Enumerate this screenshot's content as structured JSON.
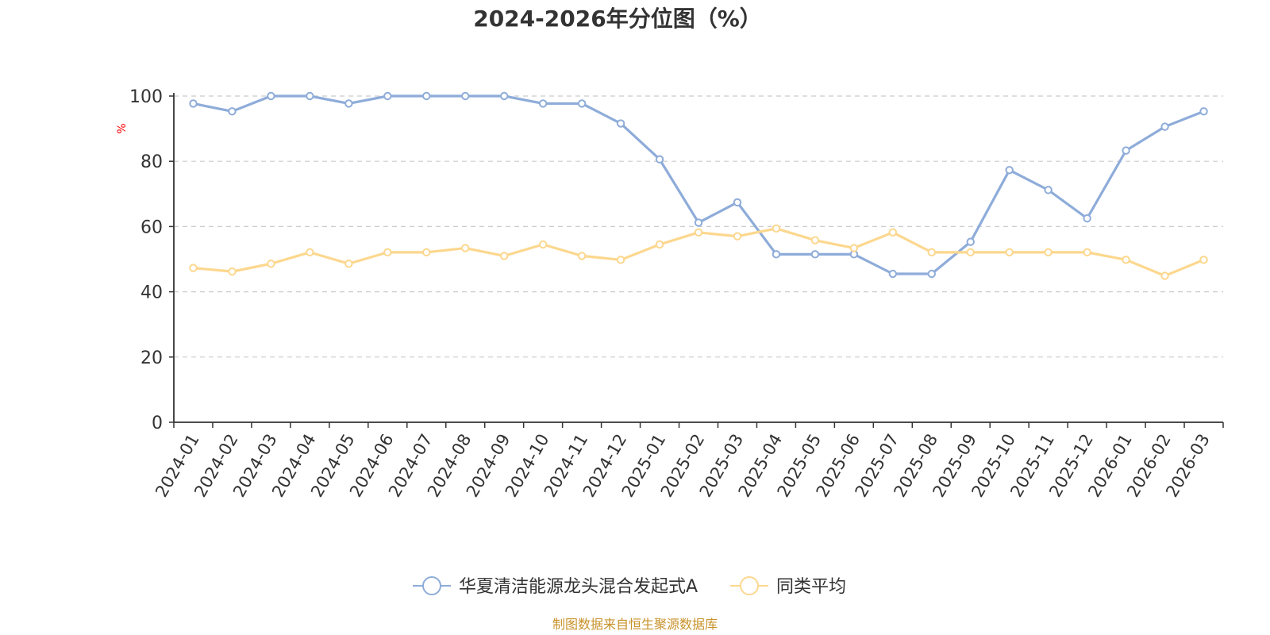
{
  "chart_data": {
    "type": "line",
    "title": "2024-2026年分位图（%）",
    "ylabel": "%",
    "ylim": [
      0,
      100
    ],
    "yticks": [
      0,
      20,
      40,
      60,
      80,
      100
    ],
    "grid": true,
    "categories": [
      "2024-01",
      "2024-02",
      "2024-03",
      "2024-04",
      "2024-05",
      "2024-06",
      "2024-07",
      "2024-08",
      "2024-09",
      "2024-10",
      "2024-11",
      "2024-12",
      "2025-01",
      "2025-02",
      "2025-03",
      "2025-04",
      "2025-05",
      "2025-06",
      "2025-07",
      "2025-08",
      "2025-09",
      "2025-10",
      "2025-11",
      "2025-12",
      "2026-01",
      "2026-02",
      "2026-03"
    ],
    "series": [
      {
        "name": "华夏清洁能源龙头混合发起式A",
        "color": "#8eacd9",
        "values": [
          97.7,
          95.3,
          100,
          100,
          97.7,
          100,
          100,
          100,
          100,
          97.7,
          97.7,
          91.6,
          80.6,
          61.2,
          67.4,
          51.5,
          51.5,
          51.5,
          45.5,
          45.5,
          55.3,
          77.3,
          71.2,
          62.5,
          83.3,
          90.6,
          95.3
        ]
      },
      {
        "name": "同类平均",
        "color": "#fcd78e",
        "values": [
          47.3,
          46.2,
          48.6,
          52.1,
          48.6,
          52.1,
          52.1,
          53.4,
          51.0,
          54.5,
          51.0,
          49.8,
          54.5,
          58.2,
          57.0,
          59.4,
          55.8,
          53.4,
          58.2,
          52.1,
          52.1,
          52.1,
          52.1,
          52.1,
          49.8,
          44.9,
          49.8
        ]
      }
    ],
    "legend_position": "bottom-center",
    "source": "制图数据来自恒生聚源数据库",
    "colors": {
      "axis": "#333333",
      "grid": "#cccccc",
      "unit_label": "#ff0000",
      "source_text": "#c8922b"
    }
  }
}
